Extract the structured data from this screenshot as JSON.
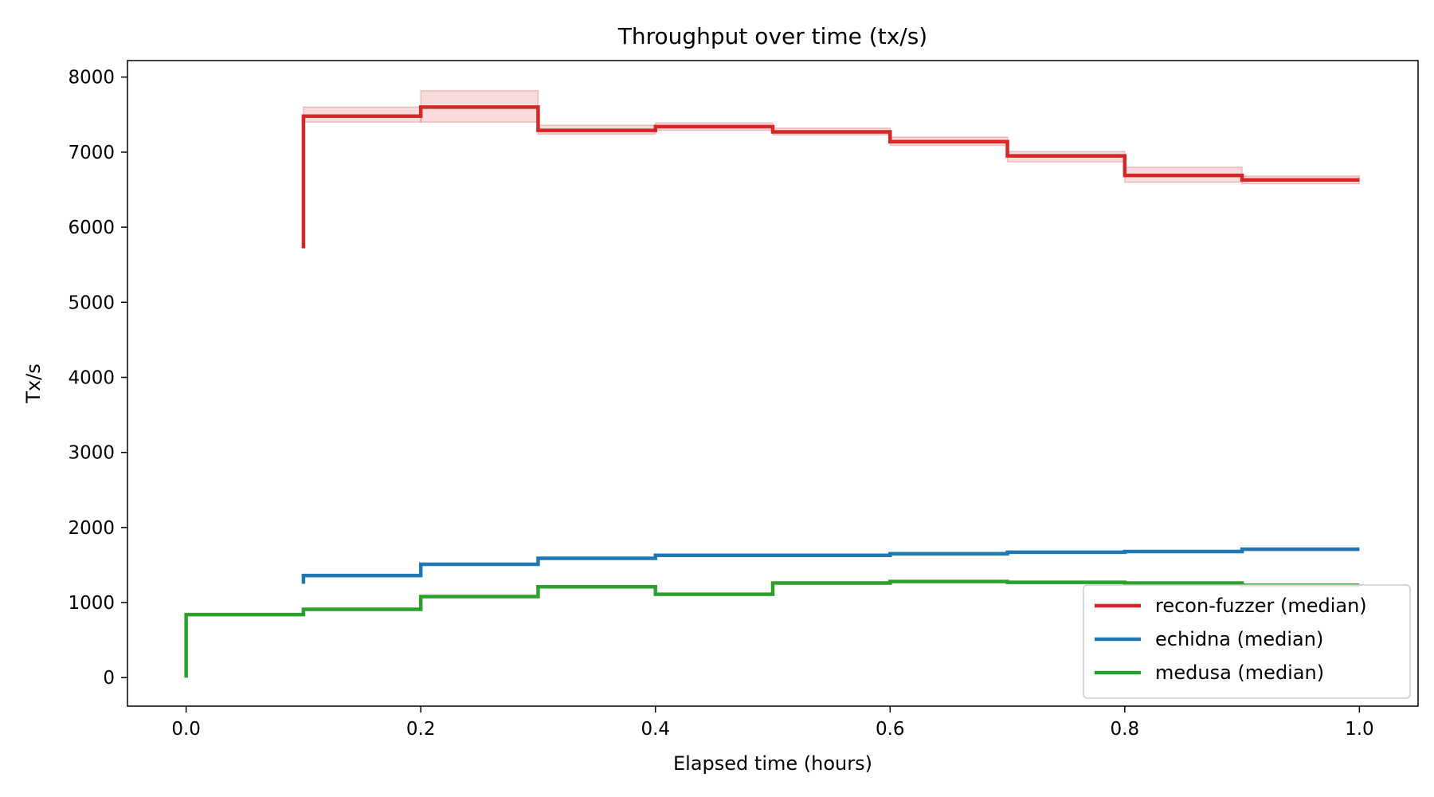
{
  "chart_data": {
    "type": "line",
    "style": "step",
    "title": "Throughput over time (tx/s)",
    "xlabel": "Elapsed time (hours)",
    "ylabel": "Tx/s",
    "xlim": [
      -0.05,
      1.05
    ],
    "ylim": [
      -380,
      8220
    ],
    "xticks": [
      0.0,
      0.2,
      0.4,
      0.6,
      0.8,
      1.0
    ],
    "xtick_labels": [
      "0.0",
      "0.2",
      "0.4",
      "0.6",
      "0.8",
      "1.0"
    ],
    "yticks": [
      0,
      1000,
      2000,
      3000,
      4000,
      5000,
      6000,
      7000,
      8000
    ],
    "ytick_labels": [
      "0",
      "1000",
      "2000",
      "3000",
      "4000",
      "5000",
      "6000",
      "7000",
      "8000"
    ],
    "grid": false,
    "legend_position": "bottom-right",
    "series": [
      {
        "name": "recon-fuzzer (median)",
        "color": "#d62728",
        "x": [
          0.1,
          0.2,
          0.3,
          0.4,
          0.5,
          0.6,
          0.7,
          0.8,
          0.9,
          1.0
        ],
        "y": [
          5720,
          7480,
          7600,
          7290,
          7340,
          7270,
          7140,
          6950,
          6690,
          6630
        ],
        "band_low": [
          5420,
          7400,
          7400,
          7240,
          7290,
          7230,
          7090,
          6870,
          6600,
          6580
        ],
        "band_high": [
          6050,
          7600,
          7820,
          7360,
          7390,
          7320,
          7200,
          7010,
          6800,
          6680
        ]
      },
      {
        "name": "echidna (median)",
        "color": "#1f77b4",
        "x": [
          0.1,
          0.2,
          0.3,
          0.4,
          0.5,
          0.6,
          0.7,
          0.8,
          0.9,
          1.0
        ],
        "y": [
          1250,
          1360,
          1510,
          1590,
          1630,
          1630,
          1650,
          1670,
          1680,
          1710
        ]
      },
      {
        "name": "medusa (median)",
        "color": "#2ca02c",
        "x": [
          0.0,
          0.1,
          0.2,
          0.3,
          0.4,
          0.5,
          0.6,
          0.7,
          0.8,
          0.9,
          1.0
        ],
        "y": [
          0,
          840,
          910,
          1080,
          1210,
          1110,
          1260,
          1280,
          1270,
          1260,
          1230
        ]
      }
    ]
  }
}
